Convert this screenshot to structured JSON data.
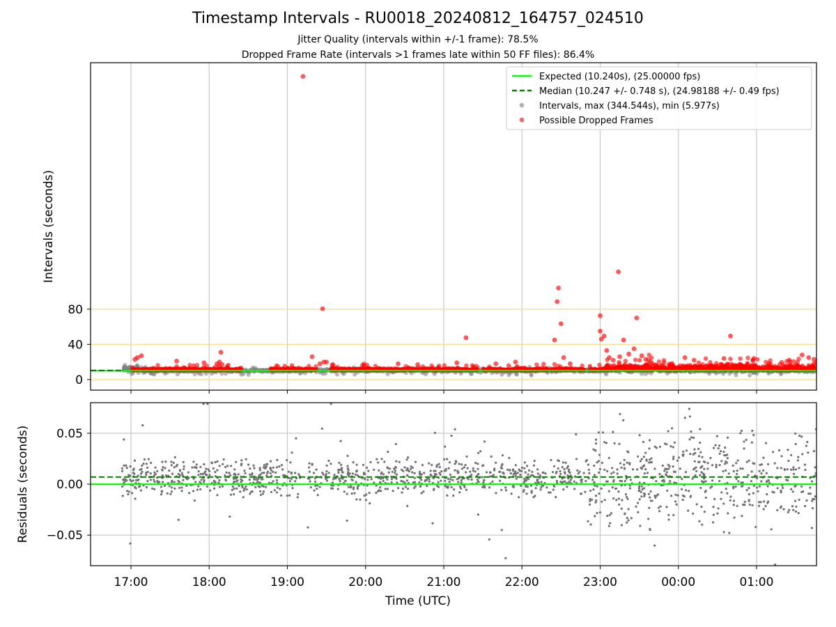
{
  "chart_data": [
    {
      "type": "scatter",
      "title": "Timestamp Intervals - RU0018_20240812_164757_024510",
      "subtitle_1": "Jitter Quality (intervals within +/-1 frame): 78.5%",
      "subtitle_2": "Dropped Frame Rate (intervals >1 frames late within 50 FF files): 86.4%",
      "ylabel": "Intervals (seconds)",
      "xlabel": "Time (UTC)",
      "x_ticks": [
        "17:00",
        "18:00",
        "19:00",
        "20:00",
        "21:00",
        "22:00",
        "23:00",
        "00:00",
        "01:00"
      ],
      "y_ticks": [
        0,
        40,
        80
      ],
      "x_range": [
        "16:29",
        "01:46"
      ],
      "ylim": [
        -12,
        360
      ],
      "grid": "vertical",
      "reference_lines": [
        0,
        40,
        80
      ],
      "reference_line_color": "#ffd67f",
      "legend_position": "top-right",
      "legend": [
        "Expected (10.240s), (25.00000 fps)",
        "Median (10.247 +/- 0.748 s), (24.98188 +/- 0.49 fps)",
        "Intervals, max (344.544s), min (5.977s)",
        "Possible Dropped Frames"
      ],
      "series": [
        {
          "name": "Expected (10.240s), (25.00000 fps)",
          "kind": "hline",
          "y": 10.24,
          "color": "#00ff00"
        },
        {
          "name": "Median (10.247 +/- 0.748 s), (24.98188 +/- 0.49 fps)",
          "kind": "hline-dashed",
          "y": 10.247,
          "color": "#008000"
        },
        {
          "name": "Intervals, max (344.544s), min (5.977s)",
          "kind": "scatter",
          "color": "#808080",
          "x_range": [
            "16:53",
            "01:46"
          ],
          "y_range": [
            5.977,
            15
          ]
        },
        {
          "name": "Possible Dropped Frames",
          "kind": "scatter",
          "color": "#ff0000",
          "points": [
            [
              "17:05",
              25
            ],
            [
              "17:08",
              27
            ],
            [
              "17:03",
              23
            ],
            [
              "17:35",
              21
            ],
            [
              "18:06",
              18
            ],
            [
              "18:08",
              20
            ],
            [
              "18:09",
              31
            ],
            [
              "18:10",
              17
            ],
            [
              "17:56",
              19
            ],
            [
              "19:12",
              344.5
            ],
            [
              "19:19",
              26
            ],
            [
              "19:25",
              18
            ],
            [
              "19:27",
              80.5
            ],
            [
              "19:28",
              20
            ],
            [
              "19:30",
              20
            ],
            [
              "19:35",
              17
            ],
            [
              "20:25",
              18
            ],
            [
              "20:40",
              17
            ],
            [
              "21:10",
              19
            ],
            [
              "21:17",
              47.5
            ],
            [
              "21:40",
              18
            ],
            [
              "21:55",
              20
            ],
            [
              "22:25",
              45
            ],
            [
              "22:27",
              88.5
            ],
            [
              "22:28",
              104
            ],
            [
              "22:30",
              63.5
            ],
            [
              "22:32",
              25
            ],
            [
              "22:37",
              18
            ],
            [
              "23:00",
              72.5
            ],
            [
              "23:00",
              55
            ],
            [
              "23:01",
              46
            ],
            [
              "23:03",
              49.5
            ],
            [
              "23:05",
              33
            ],
            [
              "23:07",
              25
            ],
            [
              "23:10",
              22
            ],
            [
              "23:14",
              122.5
            ],
            [
              "23:15",
              26
            ],
            [
              "23:18",
              45
            ],
            [
              "23:22",
              29
            ],
            [
              "23:26",
              35
            ],
            [
              "23:28",
              70
            ],
            [
              "23:32",
              27
            ],
            [
              "23:35",
              23
            ],
            [
              "00:05",
              25
            ],
            [
              "00:12",
              22
            ],
            [
              "00:35",
              24
            ],
            [
              "00:40",
              49.5
            ],
            [
              "00:58",
              24
            ],
            [
              "01:25",
              22
            ],
            [
              "01:35",
              28
            ],
            [
              "01:40",
              25
            ],
            [
              "01:44",
              23
            ]
          ]
        }
      ]
    },
    {
      "type": "scatter",
      "ylabel": "Residuals (seconds)",
      "xlabel": "Time (UTC)",
      "x_ticks": [
        "17:00",
        "18:00",
        "19:00",
        "20:00",
        "21:00",
        "22:00",
        "23:00",
        "00:00",
        "01:00"
      ],
      "y_ticks": [
        "0.05",
        "0.00",
        "−0.05"
      ],
      "x_range": [
        "16:29",
        "01:46"
      ],
      "ylim": [
        -0.08,
        0.08
      ],
      "grid": "both",
      "series": [
        {
          "kind": "hline",
          "y": 0.0,
          "color": "#00ff00"
        },
        {
          "kind": "hline-dashed",
          "y": 0.007,
          "color": "#008000"
        },
        {
          "kind": "scatter",
          "color": "#707070",
          "x_range": [
            "16:53",
            "01:46"
          ],
          "y_range": [
            -0.078,
            0.08
          ]
        }
      ]
    }
  ]
}
